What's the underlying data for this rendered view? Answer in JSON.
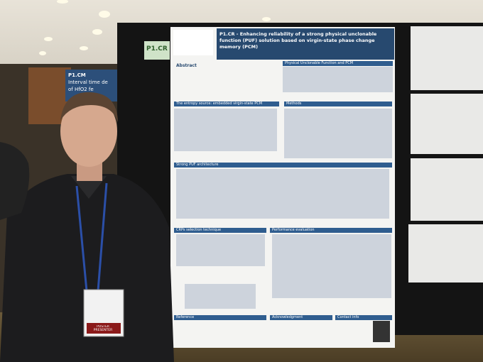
{
  "left_sign": {
    "code": "P1.CM",
    "title_line_1": "Interval time de",
    "title_line_2": "of HfO2 fe"
  },
  "board_label": "P1.CR",
  "poster": {
    "title": "P1.CR - Enhancing reliability of a strong physical unclonable function (PUF) solution based on virgin-state phase change memory (PCM)",
    "sections": [
      "Abstract",
      "Physical Unclonable Function and PCM",
      "The entropy source: embedded virgin-state PCM",
      "Methods",
      "Strong PUF architecture",
      "CRPs selection technique",
      "Performance evaluation",
      "Reference",
      "Acknowledgment",
      "Contact info"
    ]
  },
  "badge": {
    "role": "POSTER PRESENTER"
  }
}
